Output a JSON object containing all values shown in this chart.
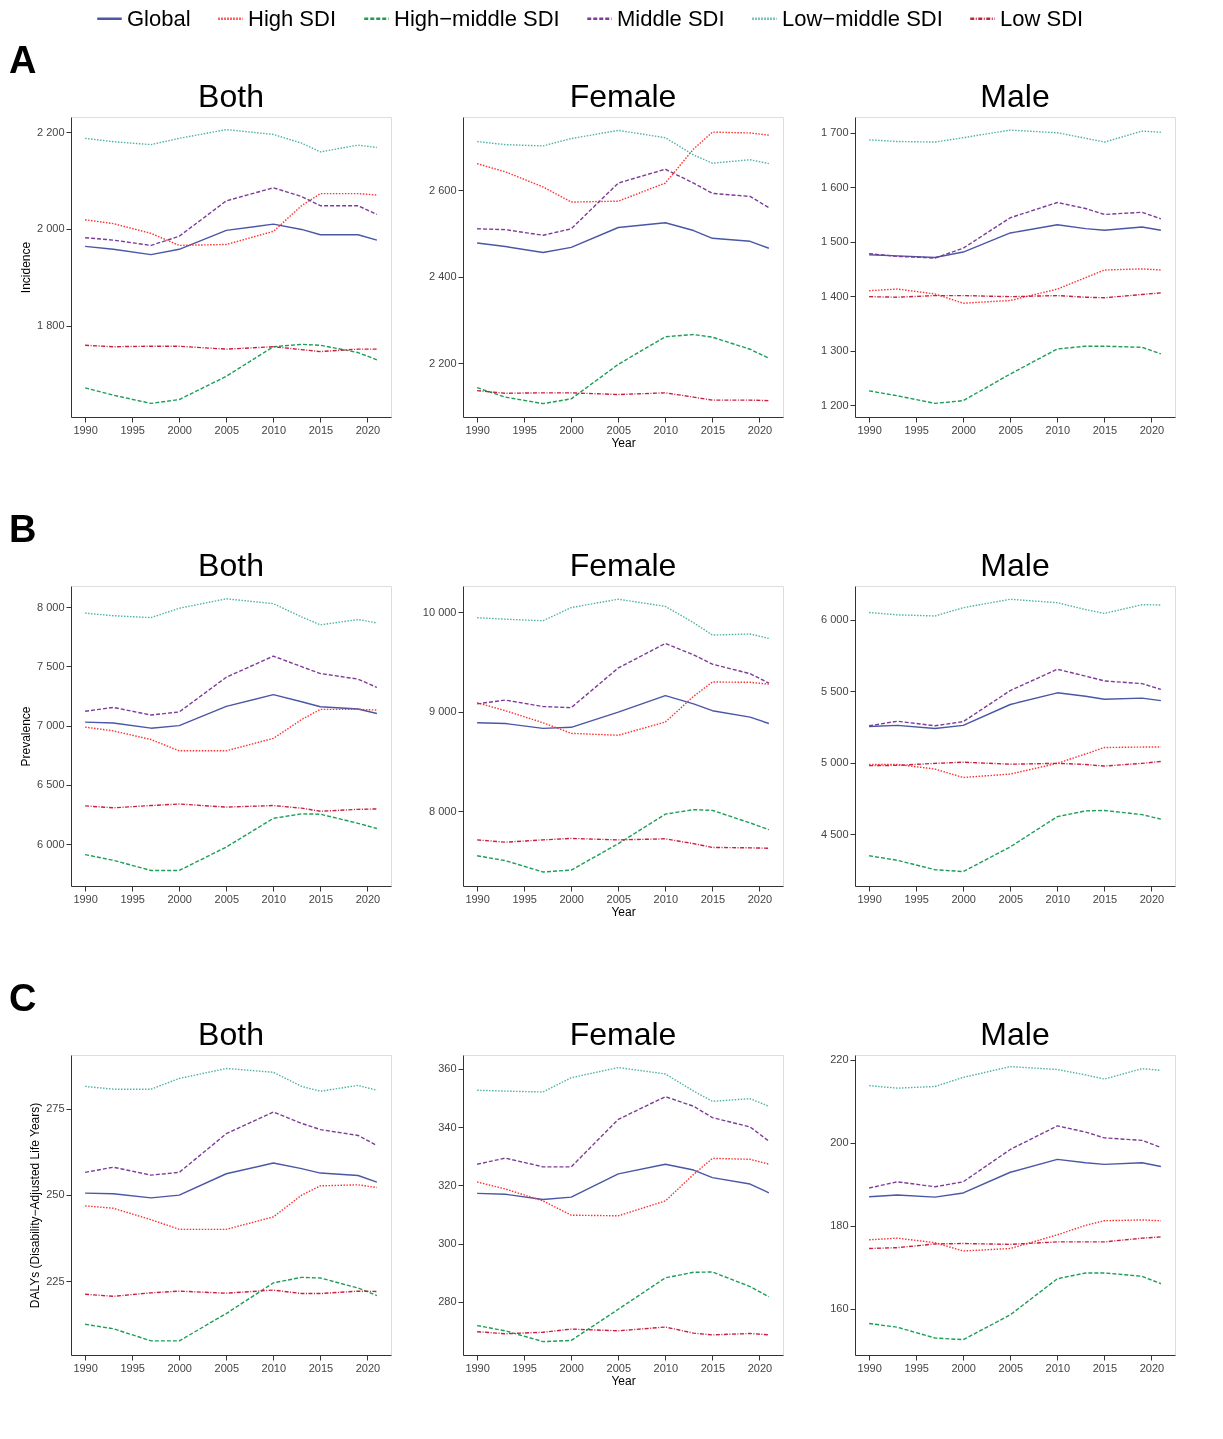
{
  "chart_data": [
    {
      "type": "line",
      "title": "Both",
      "ylabel": "Incidence",
      "annotations": [
        "A"
      ],
      "legend": "top",
      "x": [
        1990,
        1993,
        1997,
        2000,
        2005,
        2010,
        2013,
        2015,
        2019,
        2021
      ],
      "xlim": [
        1988.5,
        2022.5
      ],
      "xticks": [
        1990,
        1995,
        2000,
        2005,
        2010,
        2015,
        2020
      ],
      "ylim": [
        1612,
        2231
      ],
      "yticks": [
        {
          "value": 1800,
          "label": "1 800"
        },
        {
          "value": 2000,
          "label": "2 000"
        },
        {
          "value": 2200,
          "label": "2 200"
        }
      ],
      "series": [
        {
          "name": "Global",
          "color": "#4a56a6",
          "line_style": "solid",
          "values": [
            1964,
            1958,
            1947,
            1958,
            1997,
            2010,
            1999,
            1988,
            1988,
            1977
          ]
        },
        {
          "name": "High SDI",
          "color": "#ff3030",
          "line_style": "dotted",
          "values": [
            2019,
            2011,
            1991,
            1966,
            1968,
            1995,
            2048,
            2073,
            2073,
            2070
          ]
        },
        {
          "name": "High−middle SDI",
          "color": "#1b9e55",
          "line_style": "dashed",
          "values": [
            1672,
            1657,
            1640,
            1648,
            1696,
            1757,
            1762,
            1760,
            1745,
            1730
          ]
        },
        {
          "name": "Middle SDI",
          "color": "#7d3c98",
          "line_style": "dashed",
          "values": [
            1982,
            1977,
            1966,
            1985,
            2058,
            2085,
            2067,
            2048,
            2048,
            2030
          ]
        },
        {
          "name": "Low−middle SDI",
          "color": "#4db3a5",
          "line_style": "dotted",
          "values": [
            2187,
            2180,
            2174,
            2187,
            2205,
            2195,
            2177,
            2159,
            2173,
            2168
          ]
        },
        {
          "name": "Low SDI",
          "color": "#c8203f",
          "line_style": "dashdot",
          "values": [
            1760,
            1757,
            1758,
            1758,
            1752,
            1757,
            1751,
            1747,
            1752,
            1752
          ]
        }
      ]
    },
    {
      "type": "line",
      "title": "Female",
      "xlabel": "Year",
      "x": [
        1990,
        1993,
        1997,
        2000,
        2005,
        2010,
        2013,
        2015,
        2019,
        2021
      ],
      "xlim": [
        1988.5,
        2022.5
      ],
      "xticks": [
        1990,
        1995,
        2000,
        2005,
        2010,
        2015,
        2020
      ],
      "ylim": [
        2075,
        2770
      ],
      "yticks": [
        {
          "value": 2200,
          "label": "2 200"
        },
        {
          "value": 2400,
          "label": "2 400"
        },
        {
          "value": 2600,
          "label": "2 600"
        }
      ],
      "series": [
        {
          "color": "#4a56a6",
          "line_style": "solid",
          "values": [
            2478,
            2470,
            2456,
            2468,
            2514,
            2525,
            2507,
            2489,
            2482,
            2466
          ]
        },
        {
          "color": "#ff3030",
          "line_style": "dotted",
          "values": [
            2662,
            2643,
            2608,
            2573,
            2575,
            2617,
            2696,
            2735,
            2733,
            2728
          ]
        },
        {
          "color": "#1b9e55",
          "line_style": "dashed",
          "values": [
            2143,
            2121,
            2106,
            2117,
            2197,
            2261,
            2266,
            2260,
            2232,
            2211
          ]
        },
        {
          "color": "#7d3c98",
          "line_style": "dashed",
          "values": [
            2511,
            2509,
            2496,
            2511,
            2617,
            2649,
            2617,
            2593,
            2586,
            2560
          ]
        },
        {
          "color": "#4db3a5",
          "line_style": "dotted",
          "values": [
            2713,
            2706,
            2703,
            2720,
            2739,
            2722,
            2682,
            2663,
            2671,
            2662
          ]
        },
        {
          "color": "#c8203f",
          "line_style": "dashdot",
          "values": [
            2136,
            2130,
            2131,
            2131,
            2127,
            2131,
            2121,
            2114,
            2114,
            2113
          ]
        }
      ]
    },
    {
      "type": "line",
      "title": "Male",
      "x": [
        1990,
        1993,
        1997,
        2000,
        2005,
        2010,
        2013,
        2015,
        2019,
        2021
      ],
      "xlim": [
        1988.5,
        2022.5
      ],
      "xticks": [
        1990,
        1995,
        2000,
        2005,
        2010,
        2015,
        2020
      ],
      "ylim": [
        1178,
        1729
      ],
      "yticks": [
        {
          "value": 1200,
          "label": "1 200"
        },
        {
          "value": 1300,
          "label": "1 300"
        },
        {
          "value": 1400,
          "label": "1 400"
        },
        {
          "value": 1500,
          "label": "1 500"
        },
        {
          "value": 1600,
          "label": "1 600"
        },
        {
          "value": 1700,
          "label": "1 700"
        }
      ],
      "series": [
        {
          "color": "#4a56a6",
          "line_style": "solid",
          "values": [
            1476,
            1474,
            1471,
            1481,
            1516,
            1531,
            1524,
            1521,
            1527,
            1521
          ]
        },
        {
          "color": "#ff3030",
          "line_style": "dotted",
          "values": [
            1410,
            1413,
            1404,
            1387,
            1392,
            1413,
            1434,
            1448,
            1450,
            1448
          ]
        },
        {
          "color": "#1b9e55",
          "line_style": "dashed",
          "values": [
            1226,
            1217,
            1203,
            1208,
            1257,
            1303,
            1308,
            1308,
            1306,
            1294
          ]
        },
        {
          "color": "#7d3c98",
          "line_style": "dashed",
          "values": [
            1478,
            1473,
            1470,
            1488,
            1544,
            1572,
            1561,
            1550,
            1554,
            1542
          ]
        },
        {
          "color": "#4db3a5",
          "line_style": "dotted",
          "values": [
            1687,
            1684,
            1683,
            1691,
            1705,
            1700,
            1690,
            1683,
            1703,
            1701
          ]
        },
        {
          "color": "#c8203f",
          "line_style": "dashdot",
          "values": [
            1399,
            1398,
            1401,
            1401,
            1399,
            1401,
            1398,
            1397,
            1403,
            1406
          ]
        }
      ]
    },
    {
      "type": "line",
      "title": "Both",
      "ylabel": "Prevalence",
      "annotations": [
        "B"
      ],
      "x": [
        1990,
        1993,
        1997,
        2000,
        2005,
        2010,
        2013,
        2015,
        2019,
        2021
      ],
      "xlim": [
        1988.5,
        2022.5
      ],
      "xticks": [
        1990,
        1995,
        2000,
        2005,
        2010,
        2015,
        2020
      ],
      "ylim": [
        5646,
        8178
      ],
      "yticks": [
        {
          "value": 6000,
          "label": "6 000"
        },
        {
          "value": 6500,
          "label": "6 500"
        },
        {
          "value": 7000,
          "label": "7 000"
        },
        {
          "value": 7500,
          "label": "7 500"
        },
        {
          "value": 8000,
          "label": "8 000"
        }
      ],
      "series": [
        {
          "color": "#4a56a6",
          "line_style": "solid",
          "values": [
            7029,
            7022,
            6978,
            7000,
            7162,
            7261,
            7201,
            7159,
            7140,
            7102
          ]
        },
        {
          "color": "#ff3030",
          "line_style": "dotted",
          "values": [
            6987,
            6955,
            6882,
            6787,
            6787,
            6892,
            7051,
            7137,
            7137,
            7131
          ]
        },
        {
          "color": "#1b9e55",
          "line_style": "dashed",
          "values": [
            5911,
            5863,
            5777,
            5777,
            5975,
            6217,
            6255,
            6252,
            6175,
            6131
          ]
        },
        {
          "color": "#7d3c98",
          "line_style": "dashed",
          "values": [
            7121,
            7153,
            7089,
            7115,
            7408,
            7586,
            7497,
            7439,
            7392,
            7322
          ]
        },
        {
          "color": "#4db3a5",
          "line_style": "dotted",
          "values": [
            7949,
            7927,
            7911,
            7990,
            8070,
            8029,
            7917,
            7850,
            7895,
            7866
          ]
        },
        {
          "color": "#c8203f",
          "line_style": "dashdot",
          "values": [
            6322,
            6306,
            6325,
            6338,
            6312,
            6325,
            6303,
            6277,
            6293,
            6296
          ]
        }
      ]
    },
    {
      "type": "line",
      "title": "Female",
      "xlabel": "Year",
      "x": [
        1990,
        1993,
        1997,
        2000,
        2005,
        2010,
        2013,
        2015,
        2019,
        2021
      ],
      "xlim": [
        1988.5,
        2022.5
      ],
      "xticks": [
        1990,
        1995,
        2000,
        2005,
        2010,
        2015,
        2020
      ],
      "ylim": [
        7247,
        10266
      ],
      "yticks": [
        {
          "value": 8000,
          "label": "8 000"
        },
        {
          "value": 9000,
          "label": "9 000"
        },
        {
          "value": 10000,
          "label": "10 000"
        }
      ],
      "series": [
        {
          "color": "#4a56a6",
          "line_style": "solid",
          "values": [
            8890,
            8882,
            8833,
            8844,
            8996,
            9163,
            9080,
            9011,
            8947,
            8882
          ]
        },
        {
          "color": "#ff3030",
          "line_style": "dotted",
          "values": [
            9091,
            9011,
            8890,
            8783,
            8764,
            8897,
            9156,
            9300,
            9297,
            9278
          ]
        },
        {
          "color": "#1b9e55",
          "line_style": "dashed",
          "values": [
            7551,
            7502,
            7388,
            7407,
            7673,
            7970,
            8015,
            8008,
            7882,
            7814
          ]
        },
        {
          "color": "#7d3c98",
          "line_style": "dashed",
          "values": [
            9080,
            9118,
            9053,
            9042,
            9441,
            9688,
            9574,
            9479,
            9384,
            9289
          ]
        },
        {
          "color": "#4db3a5",
          "line_style": "dotted",
          "values": [
            9947,
            9932,
            9916,
            10049,
            10133,
            10061,
            9897,
            9772,
            9783,
            9738
          ]
        },
        {
          "color": "#c8203f",
          "line_style": "dashdot",
          "values": [
            7711,
            7688,
            7711,
            7726,
            7711,
            7722,
            7673,
            7635,
            7631,
            7627
          ]
        }
      ]
    },
    {
      "type": "line",
      "title": "Male",
      "x": [
        1990,
        1993,
        1997,
        2000,
        2005,
        2010,
        2013,
        2015,
        2019,
        2021
      ],
      "xlim": [
        1988.5,
        2022.5
      ],
      "xticks": [
        1990,
        1995,
        2000,
        2005,
        2010,
        2015,
        2020
      ],
      "ylim": [
        4136,
        6237
      ],
      "yticks": [
        {
          "value": 4500,
          "label": "4 500"
        },
        {
          "value": 5000,
          "label": "5 000"
        },
        {
          "value": 5500,
          "label": "5 500"
        },
        {
          "value": 6000,
          "label": "6 000"
        }
      ],
      "series": [
        {
          "color": "#4a56a6",
          "line_style": "solid",
          "values": [
            5253,
            5261,
            5239,
            5261,
            5407,
            5489,
            5465,
            5444,
            5452,
            5434
          ]
        },
        {
          "color": "#ff3030",
          "line_style": "dotted",
          "values": [
            4987,
            4987,
            4955,
            4896,
            4920,
            4995,
            5061,
            5106,
            5109,
            5109
          ]
        },
        {
          "color": "#1b9e55",
          "line_style": "dashed",
          "values": [
            4348,
            4316,
            4250,
            4237,
            4410,
            4622,
            4662,
            4665,
            4636,
            4604
          ]
        },
        {
          "color": "#7d3c98",
          "line_style": "dashed",
          "values": [
            5258,
            5290,
            5258,
            5287,
            5505,
            5654,
            5606,
            5572,
            5553,
            5513
          ]
        },
        {
          "color": "#4db3a5",
          "line_style": "dotted",
          "values": [
            6051,
            6035,
            6027,
            6085,
            6144,
            6120,
            6072,
            6045,
            6106,
            6104
          ]
        },
        {
          "color": "#c8203f",
          "line_style": "dashdot",
          "values": [
            4979,
            4981,
            4995,
            5003,
            4989,
            4995,
            4987,
            4976,
            4995,
            5008
          ]
        }
      ]
    },
    {
      "type": "line",
      "title": "Both",
      "ylabel": "DALYs (Disability−Adjusted Life Years)",
      "annotations": [
        "C"
      ],
      "x": [
        1990,
        1993,
        1997,
        2000,
        2005,
        2010,
        2013,
        2015,
        2019,
        2021
      ],
      "xlim": [
        1988.5,
        2022.5
      ],
      "xticks": [
        1990,
        1995,
        2000,
        2005,
        2010,
        2015,
        2020
      ],
      "ylim": [
        203.6,
        290.5
      ],
      "yticks": [
        225,
        250,
        275
      ],
      "series": [
        {
          "color": "#4a56a6",
          "line_style": "solid",
          "values": [
            250.5,
            250.3,
            249.1,
            249.9,
            256.1,
            259.2,
            257.6,
            256.3,
            255.6,
            253.7
          ]
        },
        {
          "color": "#ff3030",
          "line_style": "dotted",
          "values": [
            246.8,
            246.1,
            242.8,
            240.0,
            240.0,
            243.6,
            249.9,
            252.6,
            252.9,
            252.1
          ]
        },
        {
          "color": "#1b9e55",
          "line_style": "dashed",
          "values": [
            212.5,
            211.2,
            207.7,
            207.7,
            215.6,
            224.5,
            226.1,
            225.9,
            223.0,
            220.8
          ]
        },
        {
          "color": "#7d3c98",
          "line_style": "dashed",
          "values": [
            256.5,
            258.0,
            255.7,
            256.5,
            267.7,
            274.0,
            270.7,
            268.9,
            267.2,
            264.3
          ]
        },
        {
          "color": "#4db3a5",
          "line_style": "dotted",
          "values": [
            281.4,
            280.6,
            280.6,
            283.7,
            286.6,
            285.5,
            281.4,
            280.0,
            281.7,
            280.3
          ]
        },
        {
          "color": "#c8203f",
          "line_style": "dashdot",
          "values": [
            221.2,
            220.6,
            221.6,
            222.1,
            221.5,
            222.4,
            221.4,
            221.4,
            222.1,
            222.0
          ]
        }
      ]
    },
    {
      "type": "line",
      "title": "Female",
      "xlabel": "Year",
      "x": [
        1990,
        1993,
        1997,
        2000,
        2005,
        2010,
        2013,
        2015,
        2019,
        2021
      ],
      "xlim": [
        1988.5,
        2022.5
      ],
      "xticks": [
        1990,
        1995,
        2000,
        2005,
        2010,
        2015,
        2020
      ],
      "ylim": [
        261.8,
        364.8
      ],
      "yticks": [
        280,
        300,
        320,
        340,
        360
      ],
      "series": [
        {
          "color": "#4a56a6",
          "line_style": "solid",
          "values": [
            317.3,
            317.0,
            315.2,
            316.0,
            324.0,
            327.3,
            325.3,
            322.7,
            320.5,
            317.5
          ]
        },
        {
          "color": "#ff3030",
          "line_style": "dotted",
          "values": [
            321.2,
            318.8,
            314.7,
            309.8,
            309.6,
            314.7,
            323.8,
            329.3,
            329.0,
            327.3
          ]
        },
        {
          "color": "#1b9e55",
          "line_style": "dashed",
          "values": [
            271.9,
            270.1,
            266.4,
            266.8,
            277.5,
            288.3,
            290.2,
            290.3,
            285.3,
            281.8
          ]
        },
        {
          "color": "#7d3c98",
          "line_style": "dashed",
          "values": [
            327.3,
            329.4,
            326.4,
            326.4,
            342.7,
            350.5,
            347.2,
            343.3,
            340.1,
            335.2
          ]
        },
        {
          "color": "#4db3a5",
          "line_style": "dotted",
          "values": [
            352.7,
            352.4,
            352.1,
            357.0,
            360.5,
            358.3,
            352.4,
            348.9,
            349.8,
            347.2
          ]
        },
        {
          "color": "#c8203f",
          "line_style": "dashdot",
          "values": [
            269.8,
            269.1,
            269.6,
            270.7,
            270.1,
            271.4,
            269.3,
            268.7,
            269.2,
            268.7
          ]
        }
      ]
    },
    {
      "type": "line",
      "title": "Male",
      "x": [
        1990,
        1993,
        1997,
        2000,
        2005,
        2010,
        2013,
        2015,
        2019,
        2021
      ],
      "xlim": [
        1988.5,
        2022.5
      ],
      "xticks": [
        1990,
        1995,
        2000,
        2005,
        2010,
        2015,
        2020
      ],
      "ylim": [
        148.8,
        221.2
      ],
      "yticks": [
        160,
        180,
        200,
        220
      ],
      "series": [
        {
          "color": "#4a56a6",
          "line_style": "solid",
          "values": [
            187.0,
            187.4,
            186.9,
            187.9,
            192.9,
            196.0,
            195.2,
            194.8,
            195.2,
            194.3
          ]
        },
        {
          "color": "#ff3030",
          "line_style": "dotted",
          "values": [
            176.6,
            177.0,
            175.9,
            173.9,
            174.5,
            177.8,
            180.1,
            181.2,
            181.4,
            181.2
          ]
        },
        {
          "color": "#1b9e55",
          "line_style": "dashed",
          "values": [
            156.4,
            155.5,
            152.9,
            152.5,
            158.5,
            167.2,
            168.6,
            168.6,
            167.8,
            166.0
          ]
        },
        {
          "color": "#7d3c98",
          "line_style": "dashed",
          "values": [
            189.1,
            190.6,
            189.4,
            190.6,
            198.4,
            204.1,
            202.6,
            201.2,
            200.6,
            198.9
          ]
        },
        {
          "color": "#4db3a5",
          "line_style": "dotted",
          "values": [
            213.8,
            213.2,
            213.6,
            215.8,
            218.4,
            217.7,
            216.4,
            215.4,
            217.9,
            217.5
          ]
        },
        {
          "color": "#c8203f",
          "line_style": "dashdot",
          "values": [
            174.5,
            174.7,
            175.6,
            175.7,
            175.5,
            176.1,
            176.1,
            176.1,
            177.0,
            177.3
          ]
        }
      ]
    }
  ]
}
